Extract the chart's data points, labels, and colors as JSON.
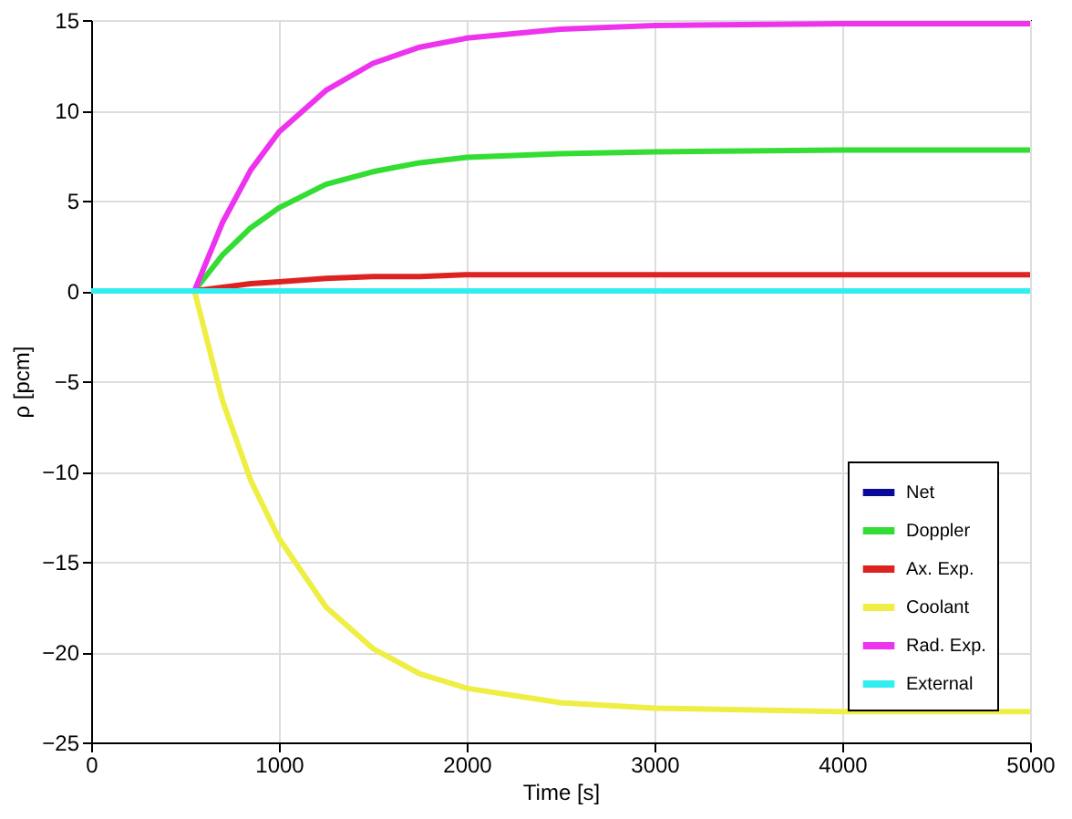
{
  "chart_data": {
    "type": "line",
    "xlabel": "Time [s]",
    "ylabel": "ρ [pcm]",
    "x": [
      0,
      550,
      700,
      850,
      1000,
      1250,
      1500,
      1750,
      2000,
      2500,
      3000,
      4000,
      5000
    ],
    "xlim": [
      0,
      5000
    ],
    "xticks": [
      0,
      1000,
      2000,
      3000,
      4000,
      5000
    ],
    "ylim": [
      -25,
      15
    ],
    "yticks": [
      -25,
      -20,
      -15,
      -10,
      -5,
      0,
      5,
      10,
      15
    ],
    "grid": true,
    "legend": "bottom right",
    "line_style": "solid",
    "marker": "none",
    "series": [
      {
        "name": "Net",
        "color": "#0a0a9a",
        "values": [
          null,
          null,
          null,
          null,
          null,
          null,
          null,
          null,
          null,
          null,
          null,
          null,
          null
        ]
      },
      {
        "name": "Doppler",
        "color": "#33dd33",
        "values": [
          0,
          0,
          2.0,
          3.5,
          4.6,
          5.9,
          6.6,
          7.1,
          7.4,
          7.6,
          7.7,
          7.8,
          7.8
        ]
      },
      {
        "name": "Ax. Exp.",
        "color": "#dd2222",
        "values": [
          0,
          0,
          0.2,
          0.4,
          0.5,
          0.7,
          0.8,
          0.8,
          0.9,
          0.9,
          0.9,
          0.9,
          0.9
        ]
      },
      {
        "name": "Coolant",
        "color": "#eeee44",
        "values": [
          0,
          0,
          -6.1,
          -10.5,
          -13.7,
          -17.5,
          -19.8,
          -21.2,
          -22.0,
          -22.8,
          -23.1,
          -23.3,
          -23.3
        ]
      },
      {
        "name": "Rad. Exp.",
        "color": "#ee33ee",
        "values": [
          0,
          0,
          3.8,
          6.7,
          8.8,
          11.1,
          12.6,
          13.5,
          14.0,
          14.5,
          14.7,
          14.8,
          14.8
        ]
      },
      {
        "name": "External",
        "color": "#33eeee",
        "values": [
          0,
          0,
          0,
          0,
          0,
          0,
          0,
          0,
          0,
          0,
          0,
          0,
          0
        ]
      }
    ]
  }
}
